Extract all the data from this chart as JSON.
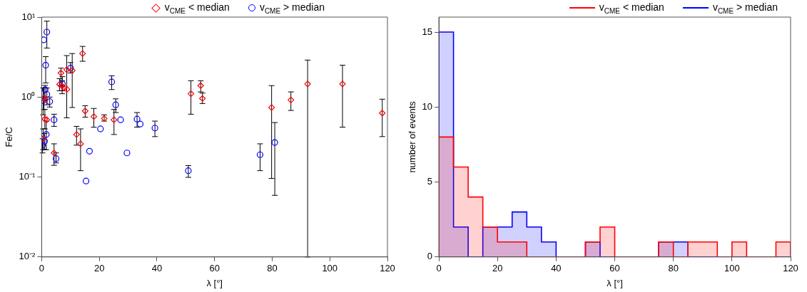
{
  "chart_data": [
    {
      "type": "scatter",
      "xlabel": "λ [°]",
      "ylabel": "Fe/C",
      "log": "y",
      "xlim": [
        0,
        120
      ],
      "xticks": [
        0,
        20,
        40,
        60,
        80,
        100,
        120
      ],
      "ylim": [
        0.01,
        10
      ],
      "yticks": [
        {
          "value": 0.01,
          "label": "10⁻²"
        },
        {
          "value": 0.1,
          "label": "10⁻¹"
        },
        {
          "value": 1,
          "label": "10⁰"
        },
        {
          "value": 10,
          "label": "10¹"
        }
      ],
      "legend": "top right",
      "series": [
        {
          "name": "v$_{CME}$ < median",
          "color": "#ff0000",
          "marker": "diamond",
          "x": [
            0.5,
            0.8,
            1.1,
            1.3,
            1.8,
            4.3,
            6.2,
            6.7,
            7.1,
            7.8,
            8.7,
            8.8,
            10.6,
            12.1,
            13.5,
            14.2,
            15.1,
            18.1,
            21.7,
            25.1,
            51.8,
            55.2,
            55.8,
            79.8,
            86.5,
            92.3,
            104.4,
            118.2
          ],
          "values": [
            0.3,
            0.98,
            0.53,
            0.93,
            0.52,
            0.2,
            1.44,
            2.0,
            1.37,
            1.3,
            2.2,
            1.25,
            2.15,
            0.34,
            0.26,
            3.5,
            0.67,
            0.57,
            0.54,
            0.52,
            1.1,
            1.39,
            0.96,
            0.74,
            0.92,
            1.46,
            1.46,
            0.63
          ],
          "errors": [
            [
              0.22,
              0.4
            ],
            [
              0.7,
              1.3
            ],
            [
              0.4,
              0.7
            ],
            null,
            null,
            [
              0.14,
              0.26
            ],
            [
              1.2,
              1.7
            ],
            [
              1.4,
              2.3
            ],
            [
              1.1,
              1.6
            ],
            null,
            [
              0.55,
              3.3
            ],
            null,
            [
              0.74,
              3.5
            ],
            [
              0.25,
              0.43
            ],
            [
              0.12,
              0.4
            ],
            [
              2.8,
              4.3
            ],
            [
              0.56,
              0.78
            ],
            [
              0.42,
              0.72
            ],
            [
              0.5,
              0.6
            ],
            [
              0.34,
              0.7
            ],
            [
              0.61,
              1.6
            ],
            [
              1.16,
              1.6
            ],
            [
              0.83,
              1.12
            ],
            [
              0.096,
              1.39
            ],
            [
              0.68,
              1.16
            ],
            [
              0.01,
              2.9
            ],
            [
              0.42,
              2.5
            ],
            [
              0.32,
              0.94
            ]
          ]
        },
        {
          "name": "v$_{CME}$ > median",
          "color": "#0000ff",
          "marker": "circle",
          "x": [
            0.3,
            0.5,
            0.7,
            1.0,
            1.2,
            1.4,
            1.6,
            1.8,
            1.8,
            2.8,
            4.3,
            5.0,
            7.2,
            10.0,
            15.4,
            16.6,
            20.4,
            24.3,
            25.7,
            27.4,
            29.6,
            33.1,
            34.2,
            39.3,
            50.9,
            75.8,
            80.9
          ],
          "values": [
            0.25,
            0.9,
            5.2,
            0.28,
            1.24,
            2.5,
            0.34,
            6.5,
            1.08,
            0.88,
            0.52,
            0.17,
            1.46,
            2.3,
            0.089,
            0.21,
            0.4,
            1.55,
            0.8,
            0.52,
            0.2,
            0.53,
            0.46,
            0.41,
            0.12,
            0.19,
            0.27
          ],
          "errors": [
            [
              0.2,
              0.3
            ],
            [
              0.6,
              1.3
            ],
            null,
            [
              0.22,
              0.35
            ],
            [
              0.9,
              1.4
            ],
            [
              1.5,
              3.2
            ],
            [
              0.22,
              0.5
            ],
            [
              4.1,
              8.9
            ],
            [
              0.8,
              1.3
            ],
            [
              0.75,
              1.0
            ],
            [
              0.43,
              0.61
            ],
            [
              0.15,
              0.2
            ],
            [
              1.2,
              1.8
            ],
            [
              2.0,
              2.7
            ],
            null,
            null,
            null,
            [
              1.24,
              1.84
            ],
            [
              0.64,
              0.95
            ],
            null,
            null,
            [
              0.42,
              0.64
            ],
            null,
            [
              0.32,
              0.5
            ],
            [
              0.099,
              0.139
            ],
            [
              0.12,
              0.26
            ],
            [
              0.059,
              0.48
            ]
          ]
        }
      ]
    },
    {
      "type": "histogram",
      "xlabel": "λ [°]",
      "ylabel": "number of events",
      "xlim": [
        0,
        120
      ],
      "xticks": [
        0,
        20,
        40,
        60,
        80,
        100,
        120
      ],
      "ylim": [
        0,
        16
      ],
      "yticks": [
        0,
        5,
        10,
        15
      ],
      "legend": "top right",
      "bins": [
        0,
        5,
        10,
        15,
        20,
        25,
        30,
        35,
        40,
        45,
        50,
        55,
        60,
        65,
        70,
        75,
        80,
        85,
        90,
        95,
        100,
        105,
        110,
        115,
        120
      ],
      "series": [
        {
          "name": "v$_{CME}$ < median",
          "color": "#ff0000",
          "values": [
            8,
            6,
            4,
            2,
            1,
            1,
            0,
            0,
            0,
            0,
            1,
            2,
            0,
            0,
            0,
            1,
            0,
            1,
            1,
            0,
            1,
            0,
            0,
            1
          ]
        },
        {
          "name": "v$_{CME}$ > median",
          "color": "#0000ff",
          "values": [
            15,
            2,
            0,
            2,
            2,
            3,
            2,
            1,
            0,
            0,
            1,
            0,
            0,
            0,
            0,
            1,
            1,
            0,
            0,
            0,
            0,
            0,
            0,
            0
          ]
        }
      ]
    }
  ]
}
